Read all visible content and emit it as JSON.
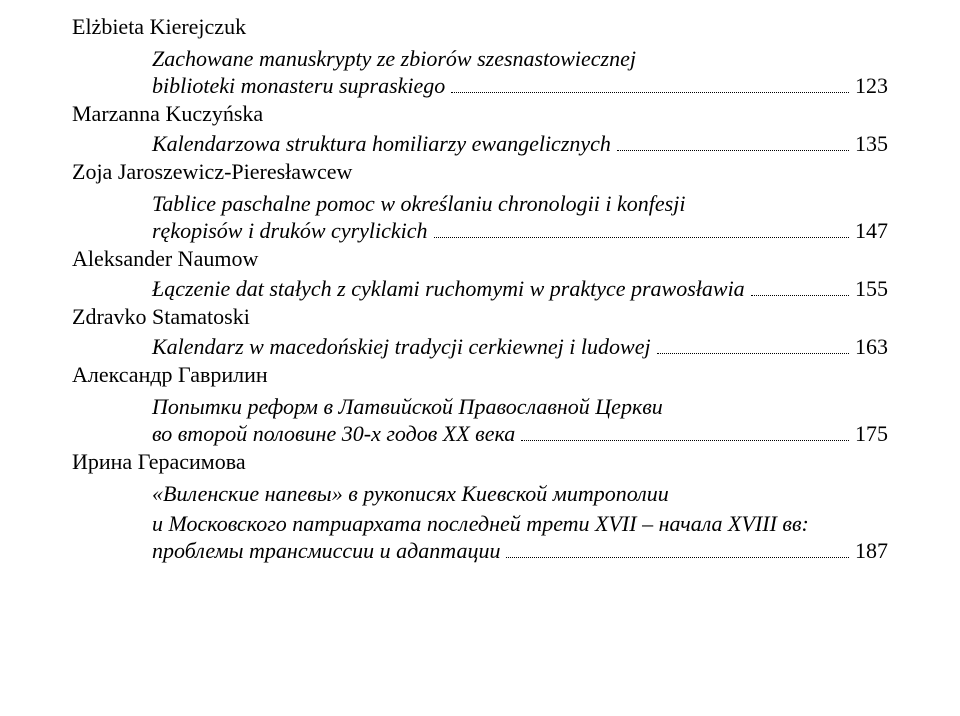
{
  "entries": [
    {
      "author": "Elżbieta Kierejczuk",
      "title_lines": [
        "Zachowane manuskrypty ze zbiorów szesnastowiecznej"
      ],
      "last_title": "biblioteki monasteru supraskiego",
      "page": "123"
    },
    {
      "author": "Marzanna Kuczyńska",
      "title_lines": [],
      "last_title": "Kalendarzowa struktura homiliarzy ewangelicznych",
      "page": "135"
    },
    {
      "author": "Zoja Jaroszewicz-Pieresławcew",
      "title_lines": [
        "Tablice paschalne pomoc w określaniu chronologii i konfesji"
      ],
      "last_title": "rękopisów i druków cyrylickich",
      "page": "147"
    },
    {
      "author": "Aleksander Naumow",
      "title_lines": [],
      "last_title": "Łączenie dat stałych z cyklami ruchomymi w praktyce prawosławia",
      "page": "155"
    },
    {
      "author": "Zdravko Stamatoski",
      "title_lines": [],
      "last_title": "Kalendarz w macedońskiej tradycji cerkiewnej i ludowej",
      "page": "163"
    },
    {
      "author": "Александр Гаврилин",
      "title_lines": [
        "Попытки реформ в Латвийской Православной Церкви"
      ],
      "last_title": "во второй половине 30-х годов XX века",
      "page": "175"
    },
    {
      "author": "Ирина Герасимова",
      "title_lines": [
        "«Виленские напевы» в рукописях Киевской митрополии",
        "и Московского патриархата последней трети XVII – начала XVIII вв:"
      ],
      "last_title": "проблемы трансмиссии и адаптации",
      "page": "187"
    }
  ]
}
